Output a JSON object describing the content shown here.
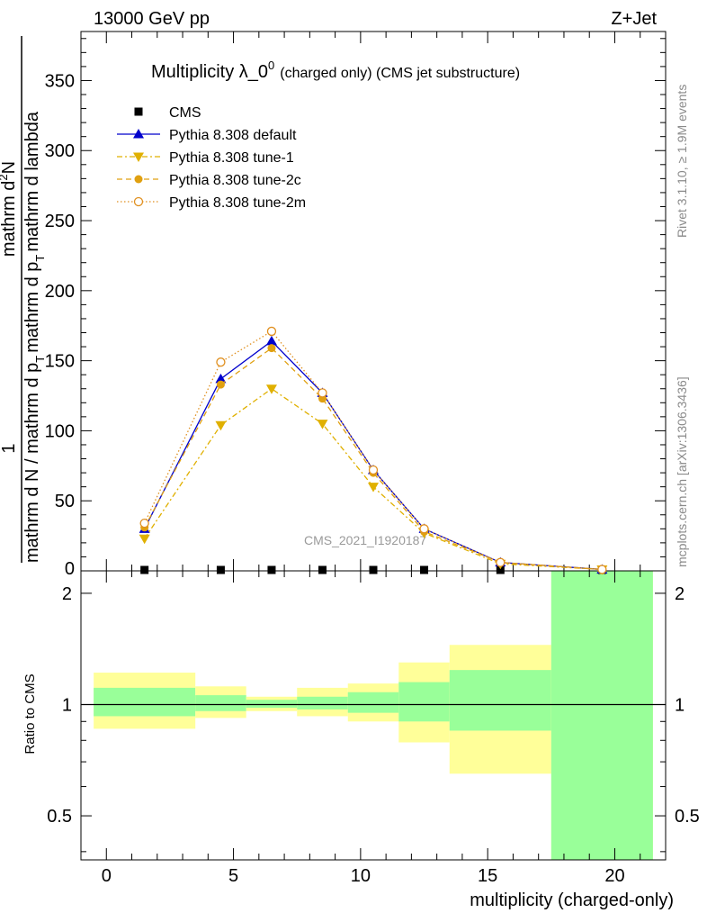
{
  "header": {
    "energy": "13000 GeV pp",
    "process": "Z+Jet"
  },
  "side_labels": {
    "rivet": "Rivet 3.1.10, ≥ 1.9M events",
    "source": "mcplots.cern.ch [arXiv:1306.3436]"
  },
  "watermark": "CMS_2021_I1920187",
  "chart_data": [
    {
      "type": "line",
      "title": "Multiplicity λ_0",
      "title_sup": "0",
      "subtitle": "(charged only) (CMS jet substructure)",
      "ylabel_numerator": "1",
      "ylabel_numerator_right": "mathrm d",
      "ylabel_numerator_sup": "2",
      "ylabel_numerator_end": "N",
      "ylabel_denominator": "mathrm d N / mathrm d p",
      "ylabel_denominator_sub": "T",
      "ylabel_denominator_right": "mathrm d p",
      "ylabel_denominator_right_sub": "T",
      "ylabel_denominator_end": "mathrm d lambda",
      "xlim": [
        -1,
        22
      ],
      "ylim": [
        0,
        385
      ],
      "yticks": [
        50,
        100,
        150,
        200,
        250,
        300,
        350
      ],
      "x": [
        1.5,
        4.5,
        6.5,
        8.5,
        10.5,
        12.5,
        15.5,
        19.5
      ],
      "series": [
        {
          "name": "CMS",
          "style": "data",
          "color": "#000000",
          "values": [
            0,
            0,
            0,
            0,
            0,
            0,
            0,
            0
          ]
        },
        {
          "name": "Pythia 8.308 default",
          "style": "solid-triangle-up",
          "color": "#0000cc",
          "values": [
            30,
            137,
            164,
            127,
            72,
            30,
            6,
            1
          ]
        },
        {
          "name": "Pythia 8.308 tune-1",
          "style": "dashdot-triangle-down",
          "color": "#e0b000",
          "values": [
            23,
            104,
            130,
            105,
            60,
            27,
            5,
            1
          ]
        },
        {
          "name": "Pythia 8.308 tune-2c",
          "style": "dashed-circle",
          "color": "#e0a010",
          "values": [
            31,
            133,
            159,
            123,
            70,
            28,
            6,
            1
          ]
        },
        {
          "name": "Pythia 8.308 tune-2m",
          "style": "dotted-open-circle",
          "color": "#e09020",
          "values": [
            34,
            149,
            171,
            127,
            72,
            30,
            6,
            1
          ]
        }
      ]
    },
    {
      "type": "area",
      "ylabel": "Ratio to CMS",
      "xlabel": "multiplicity (charged-only)",
      "xlim": [
        -1,
        22
      ],
      "ylim": [
        0.38,
        2.3
      ],
      "log_y": true,
      "yticks": [
        "0.5",
        "1",
        "2"
      ],
      "xticks": [
        "0",
        "5",
        "10",
        "15",
        "20"
      ],
      "bins": [
        {
          "lo": -0.5,
          "hi": 3.5,
          "stat": [
            0.93,
            1.11
          ],
          "total": [
            0.86,
            1.22
          ]
        },
        {
          "lo": 3.5,
          "hi": 5.5,
          "stat": [
            0.96,
            1.06
          ],
          "total": [
            0.92,
            1.12
          ]
        },
        {
          "lo": 5.5,
          "hi": 7.5,
          "stat": [
            0.98,
            1.03
          ],
          "total": [
            0.96,
            1.05
          ]
        },
        {
          "lo": 7.5,
          "hi": 9.5,
          "stat": [
            0.97,
            1.05
          ],
          "total": [
            0.93,
            1.11
          ]
        },
        {
          "lo": 9.5,
          "hi": 11.5,
          "stat": [
            0.95,
            1.08
          ],
          "total": [
            0.9,
            1.14
          ]
        },
        {
          "lo": 11.5,
          "hi": 13.5,
          "stat": [
            0.9,
            1.15
          ],
          "total": [
            0.79,
            1.3
          ]
        },
        {
          "lo": 13.5,
          "hi": 17.5,
          "stat": [
            0.85,
            1.24
          ],
          "total": [
            0.65,
            1.45
          ]
        },
        {
          "lo": 17.5,
          "hi": 21.5,
          "stat": [
            0.38,
            2.3
          ],
          "total": [
            0.38,
            2.3
          ]
        }
      ],
      "reference": 1,
      "colors": {
        "stat": "#99ff99",
        "total": "#ffff99"
      }
    }
  ]
}
